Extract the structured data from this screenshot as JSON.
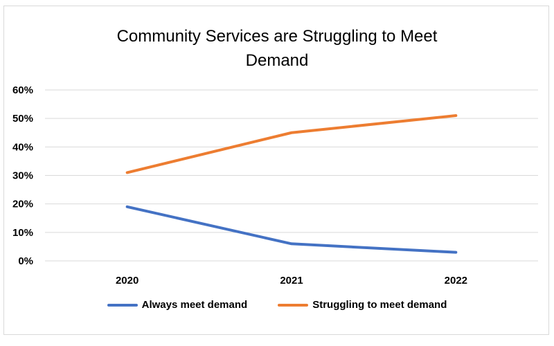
{
  "chart_data": {
    "type": "line",
    "title_lines": [
      "Community Services are Struggling to Meet",
      "Demand"
    ],
    "categories": [
      "2020",
      "2021",
      "2022"
    ],
    "y_ticks": [
      "0%",
      "10%",
      "20%",
      "30%",
      "40%",
      "50%",
      "60%"
    ],
    "ylim": [
      0,
      60
    ],
    "grid": true,
    "legend_position": "bottom",
    "series": [
      {
        "name": "Always meet demand",
        "color": "#4472C4",
        "values": [
          19,
          6,
          3
        ]
      },
      {
        "name": "Struggling to meet demand",
        "color": "#ED7D31",
        "values": [
          31,
          45,
          51
        ]
      }
    ]
  }
}
